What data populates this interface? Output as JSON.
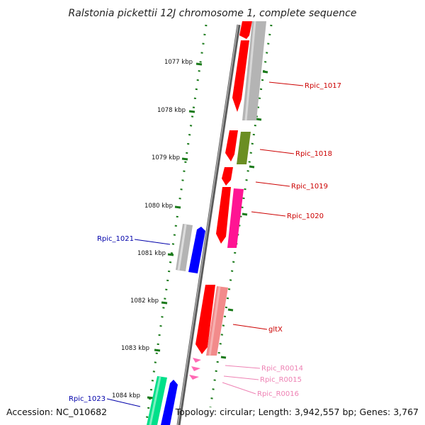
{
  "title": "Ralstonia pickettii 12J chromosome 1, complete sequence",
  "footer": {
    "accession": "Accession: NC_010682",
    "summary": "Topology: circular; Length: 3,942,557 bp; Genes: 3,767"
  },
  "colors": {
    "backbone": "#777777",
    "tick": "#1a7a1a",
    "cds_red": "#ff0000",
    "cds_grey": "#b4b4b4",
    "cds_olive": "#6b8e23",
    "cds_magenta": "#ff1493",
    "cds_blue": "#0000ff",
    "cds_salmon": "#f28b8b",
    "cds_spring": "#00e08a",
    "rna_pink": "#ff69b4",
    "label_red": "#cc0000",
    "label_blue": "#0000aa",
    "label_pink": "#ee82b4"
  },
  "kbp_labels": [
    "1077 kbp",
    "1078 kbp",
    "1079 kbp",
    "1080 kbp",
    "1081 kbp",
    "1082 kbp",
    "1083 kbp",
    "1084 kbp"
  ],
  "gene_labels": [
    {
      "text": "Rpic_1017",
      "color": "label_red"
    },
    {
      "text": "Rpic_1018",
      "color": "label_red"
    },
    {
      "text": "Rpic_1019",
      "color": "label_red"
    },
    {
      "text": "Rpic_1020",
      "color": "label_red"
    },
    {
      "text": "Rpic_1021",
      "color": "label_blue"
    },
    {
      "text": "gltX",
      "color": "label_red"
    },
    {
      "text": "Rpic_R0014",
      "color": "label_pink"
    },
    {
      "text": "Rpic_R0015",
      "color": "label_pink"
    },
    {
      "text": "Rpic_R0016",
      "color": "label_pink"
    },
    {
      "text": "Rpic_1023",
      "color": "label_blue"
    }
  ]
}
